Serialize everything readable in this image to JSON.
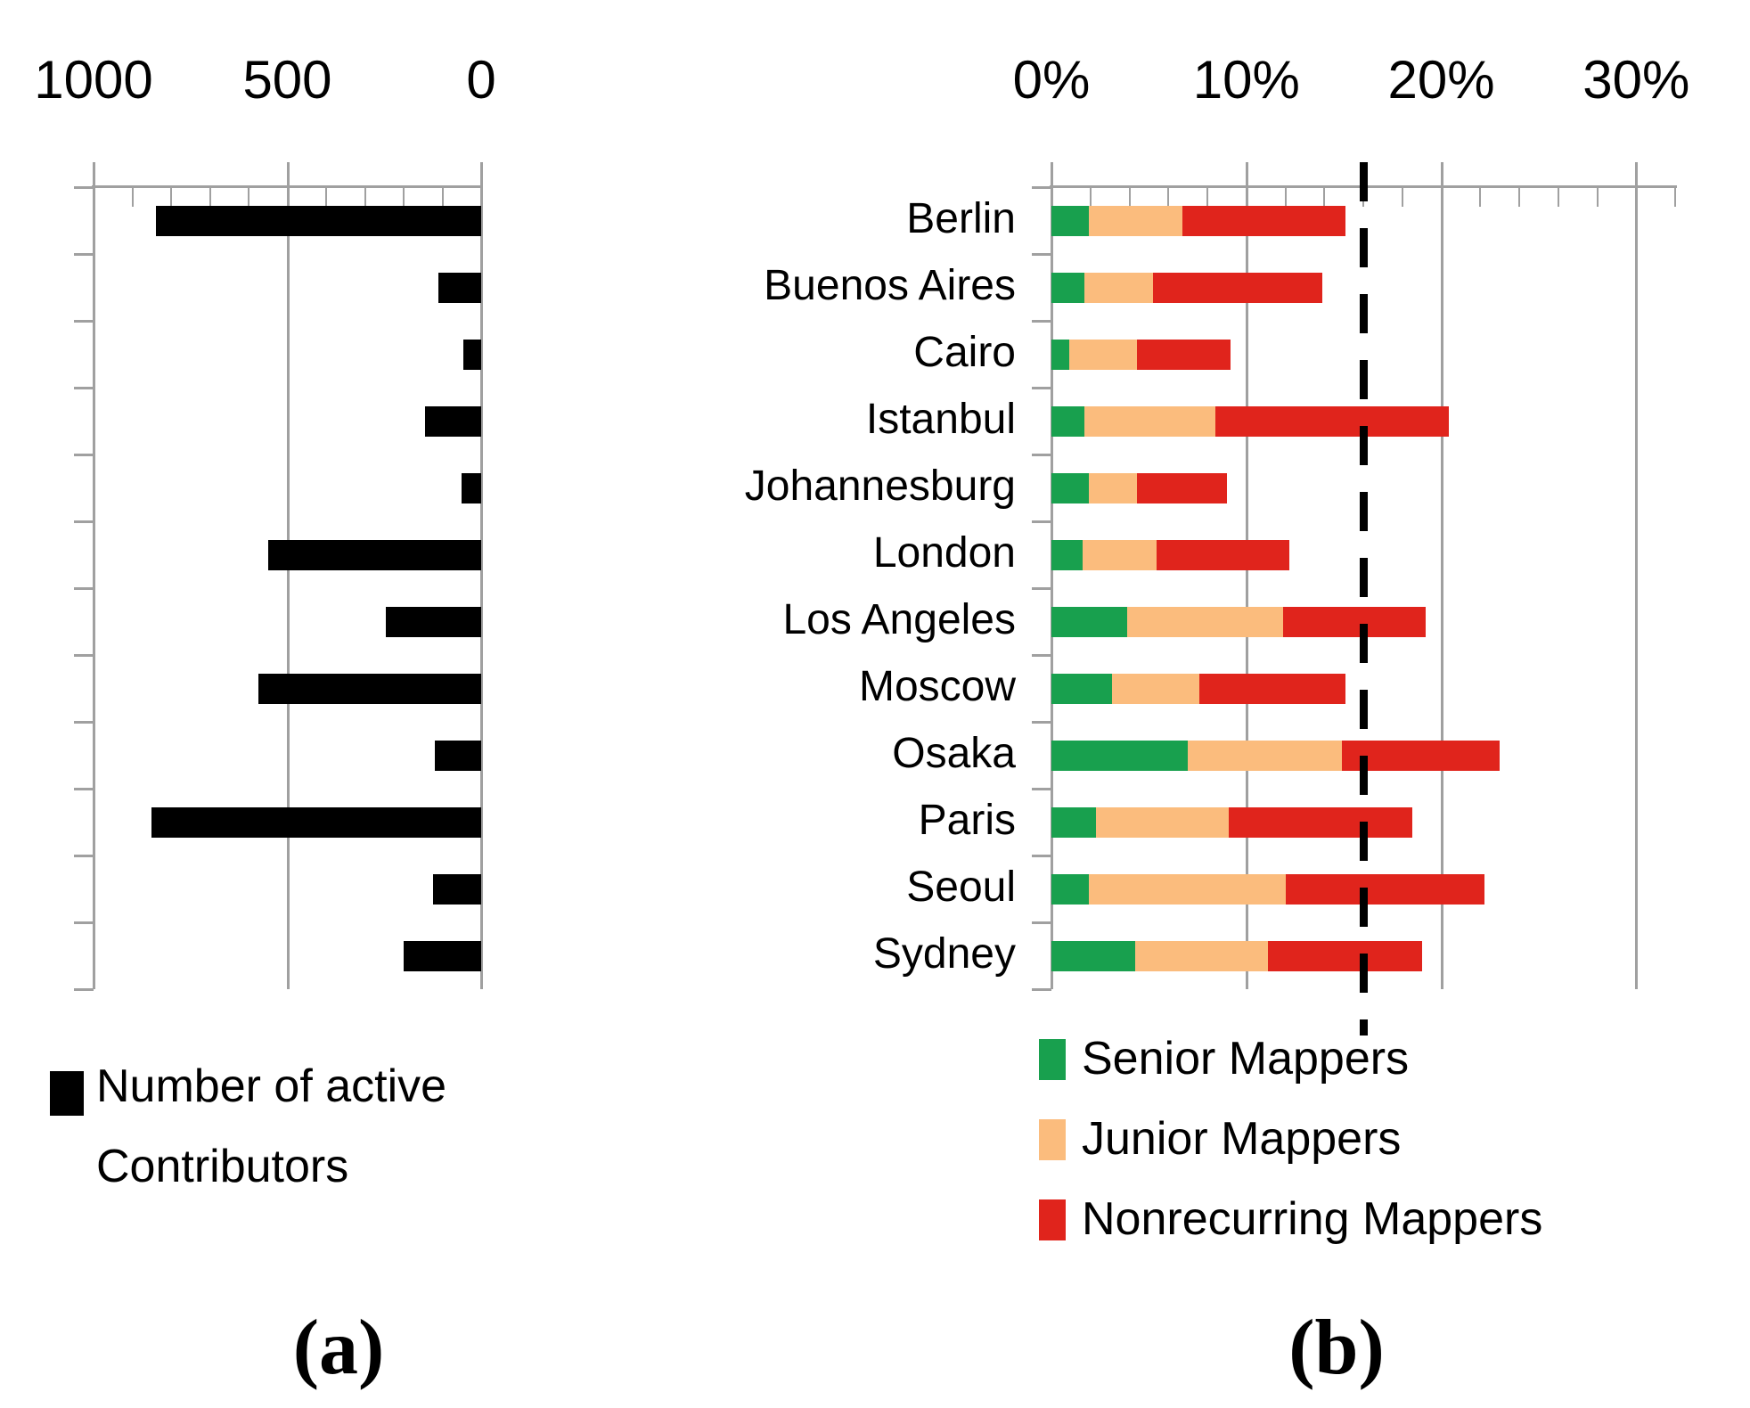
{
  "captions": {
    "a": "(a)",
    "b": "(b)"
  },
  "left_chart": {
    "legend": {
      "line1": "Number of active",
      "line2": "Contributors",
      "swatch_color": "#000000"
    },
    "axis_tick_labels": [
      "1000",
      "500",
      "0"
    ]
  },
  "right_chart": {
    "axis_tick_labels": [
      "0%",
      "10%",
      "20%",
      "30%"
    ],
    "legend": [
      {
        "label": "Senior Mappers",
        "color": "#18A04E"
      },
      {
        "label": "Junior Mappers",
        "color": "#FBBC7D"
      },
      {
        "label": "Nonrecurring Mappers",
        "color": "#E0241C"
      }
    ],
    "reference_line_label": "16%"
  },
  "colors": {
    "bar_black": "#000000",
    "senior_green": "#18A04E",
    "junior_orange": "#FBBC7D",
    "nonrecurring_red": "#E0241C",
    "grid_gray": "#A0A0A0",
    "dash_black": "#000000"
  },
  "chart_data": [
    {
      "id": "a",
      "type": "bar",
      "orientation": "horizontal",
      "stacked": false,
      "title": "Number of active Contributors",
      "categories": [
        "Berlin",
        "Buenos Aires",
        "Cairo",
        "Istanbul",
        "Johannesburg",
        "London",
        "Los Angeles",
        "Moscow",
        "Osaka",
        "Paris",
        "Seoul",
        "Sydney"
      ],
      "values": [
        840,
        110,
        45,
        145,
        50,
        550,
        245,
        575,
        120,
        850,
        125,
        200
      ],
      "xlabel": "",
      "ylabel": "",
      "xlim": [
        1000,
        0
      ],
      "xticks": [
        1000,
        500,
        0
      ],
      "xtick_labels": [
        "1000",
        "500",
        "0"
      ],
      "minor_tick_step": 100,
      "axis_reversed": true,
      "grid": true,
      "bar_color": "#000000",
      "legend_position": "bottom-left"
    },
    {
      "id": "b",
      "type": "bar",
      "orientation": "horizontal",
      "stacked": true,
      "title": "",
      "categories": [
        "Berlin",
        "Buenos Aires",
        "Cairo",
        "Istanbul",
        "Johannesburg",
        "London",
        "Los Angeles",
        "Moscow",
        "Osaka",
        "Paris",
        "Seoul",
        "Sydney"
      ],
      "series": [
        {
          "name": "Senior Mappers",
          "color": "#18A04E",
          "values": [
            1.9,
            1.7,
            0.9,
            1.7,
            1.9,
            1.6,
            3.9,
            3.1,
            7.0,
            2.3,
            1.9,
            4.3
          ]
        },
        {
          "name": "Junior Mappers",
          "color": "#FBBC7D",
          "values": [
            4.8,
            3.5,
            3.5,
            6.7,
            2.5,
            3.8,
            8.0,
            4.5,
            7.9,
            6.8,
            10.1,
            6.8
          ]
        },
        {
          "name": "Nonrecurring Mappers",
          "color": "#E0241C",
          "values": [
            8.4,
            8.7,
            4.8,
            12.0,
            4.6,
            6.8,
            7.3,
            7.5,
            8.1,
            9.4,
            10.2,
            7.9
          ]
        }
      ],
      "xlabel": "",
      "ylabel": "",
      "xlim": [
        0,
        32
      ],
      "xticks": [
        0,
        10,
        20,
        30
      ],
      "xtick_labels": [
        "0%",
        "10%",
        "20%",
        "30%"
      ],
      "minor_tick_step": 2,
      "grid": true,
      "reference_line": {
        "value": 16,
        "style": "dashed",
        "color": "#000000"
      },
      "legend_position": "bottom"
    }
  ]
}
